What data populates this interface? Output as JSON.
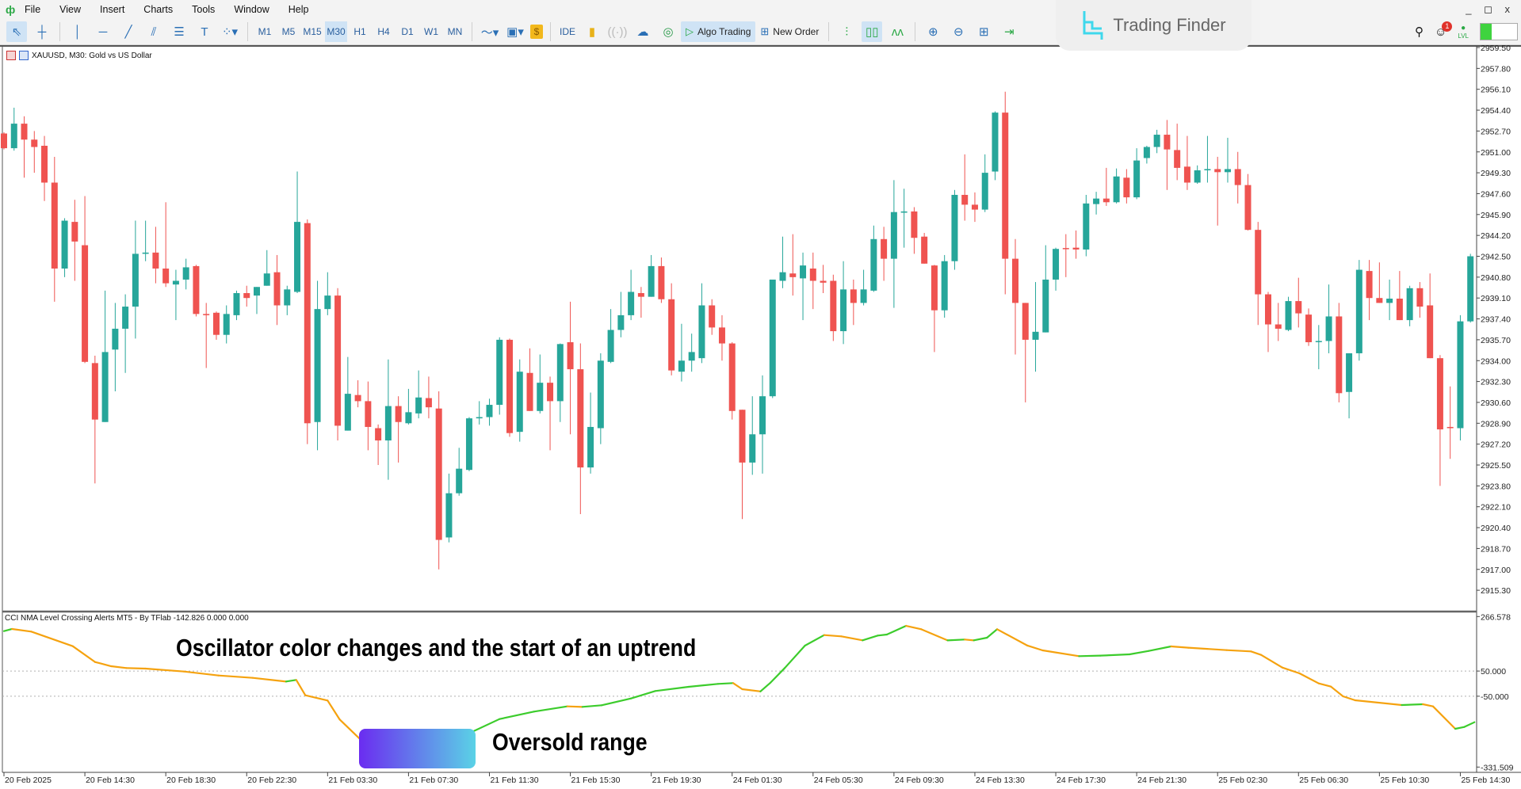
{
  "menu": {
    "items": [
      "File",
      "View",
      "Insert",
      "Charts",
      "Tools",
      "Window",
      "Help"
    ],
    "window_controls": "_ ◻ x"
  },
  "toolbar": {
    "tools": [
      "cursor-icon",
      "crosshair-icon",
      "vertical-line-icon",
      "horizontal-line-icon",
      "trendline-icon",
      "channel-icon",
      "fibonacci-icon",
      "text-icon",
      "shapes-icon"
    ],
    "timeframes": [
      "M1",
      "M5",
      "M15",
      "M30",
      "H1",
      "H4",
      "D1",
      "W1",
      "MN"
    ],
    "active_timeframe": "M30",
    "ide_label": "IDE",
    "algo_trading_label": "Algo Trading",
    "new_order_label": "New Order",
    "notification_count": "1",
    "lvl_label": "LVL"
  },
  "watermark": {
    "brand": "Trading Finder"
  },
  "chart": {
    "title": "XAUUSD, M30:  Gold vs US Dollar",
    "colors": {
      "bull": "#26a69a",
      "bear": "#ef5350"
    },
    "price_axis": [
      "2959.50",
      "2957.80",
      "2956.10",
      "2954.40",
      "2952.70",
      "2951.00",
      "2949.30",
      "2947.60",
      "2945.90",
      "2944.20",
      "2942.50",
      "2940.80",
      "2939.10",
      "2937.40",
      "2935.70",
      "2934.00",
      "2932.30",
      "2930.60",
      "2928.90",
      "2927.20",
      "2925.50",
      "2923.80",
      "2922.10",
      "2920.40",
      "2918.70",
      "2917.00",
      "2915.30"
    ],
    "time_axis": [
      "20 Feb 2025",
      "20 Feb 14:30",
      "20 Feb 18:30",
      "20 Feb 22:30",
      "21 Feb 03:30",
      "21 Feb 07:30",
      "21 Feb 11:30",
      "21 Feb 15:30",
      "21 Feb 19:30",
      "24 Feb 01:30",
      "24 Feb 05:30",
      "24 Feb 09:30",
      "24 Feb 13:30",
      "24 Feb 17:30",
      "24 Feb 21:30",
      "25 Feb 02:30",
      "25 Feb 06:30",
      "25 Feb 10:30",
      "25 Feb 14:30"
    ],
    "candles_ohlc": [
      [
        2952.5,
        2952.6,
        2951.2,
        2951.3
      ],
      [
        2951.3,
        2954.6,
        2951.1,
        2953.3
      ],
      [
        2953.3,
        2953.9,
        2948.9,
        2952.0
      ],
      [
        2952.0,
        2952.7,
        2949.3,
        2951.4
      ],
      [
        2951.5,
        2952.3,
        2947.0,
        2948.5
      ],
      [
        2948.5,
        2950.6,
        2938.8,
        2941.5
      ],
      [
        2941.5,
        2945.6,
        2940.8,
        2945.4
      ],
      [
        2945.3,
        2947.1,
        2940.5,
        2943.7
      ],
      [
        2943.4,
        2947.4,
        2933.8,
        2933.9
      ],
      [
        2933.8,
        2934.4,
        2924.0,
        2929.2
      ],
      [
        2929.0,
        2939.7,
        2929.0,
        2934.7
      ],
      [
        2934.9,
        2938.7,
        2931.5,
        2936.6
      ],
      [
        2936.6,
        2939.4,
        2933.0,
        2938.4
      ],
      [
        2938.4,
        2945.4,
        2935.8,
        2942.7
      ],
      [
        2942.7,
        2945.4,
        2942.1,
        2942.8
      ],
      [
        2942.8,
        2944.9,
        2940.3,
        2941.5
      ],
      [
        2941.5,
        2946.9,
        2940.0,
        2940.3
      ],
      [
        2940.2,
        2941.4,
        2937.3,
        2940.5
      ],
      [
        2940.6,
        2942.3,
        2939.8,
        2941.6
      ],
      [
        2941.7,
        2941.8,
        2937.6,
        2937.8
      ],
      [
        2937.8,
        2938.7,
        2933.4,
        2937.7
      ],
      [
        2937.9,
        2938.0,
        2935.7,
        2936.1
      ],
      [
        2936.1,
        2938.5,
        2935.4,
        2937.8
      ],
      [
        2937.7,
        2939.7,
        2937.3,
        2939.5
      ],
      [
        2939.5,
        2940.1,
        2938.4,
        2939.1
      ],
      [
        2939.3,
        2940.0,
        2937.8,
        2940.0
      ],
      [
        2940.1,
        2943.0,
        2940.1,
        2941.1
      ],
      [
        2941.2,
        2942.6,
        2936.9,
        2938.5
      ],
      [
        2938.5,
        2940.1,
        2937.7,
        2939.8
      ],
      [
        2939.6,
        2949.4,
        2939.5,
        2945.3
      ],
      [
        2945.2,
        2945.5,
        2927.2,
        2928.9
      ],
      [
        2929.0,
        2940.5,
        2926.7,
        2938.2
      ],
      [
        2938.2,
        2941.2,
        2937.7,
        2939.3
      ],
      [
        2939.3,
        2939.9,
        2927.5,
        2928.7
      ],
      [
        2928.3,
        2934.3,
        2928.3,
        2931.3
      ],
      [
        2931.2,
        2932.4,
        2930.2,
        2930.7
      ],
      [
        2930.7,
        2932.3,
        2926.7,
        2928.6
      ],
      [
        2928.5,
        2928.8,
        2925.5,
        2927.5
      ],
      [
        2927.5,
        2934.1,
        2924.3,
        2930.3
      ],
      [
        2930.3,
        2931.1,
        2925.7,
        2929.0
      ],
      [
        2928.9,
        2931.7,
        2928.8,
        2929.8
      ],
      [
        2929.7,
        2933.2,
        2929.3,
        2931.0
      ],
      [
        2930.95,
        2932.7,
        2929.3,
        2930.2
      ],
      [
        2930.1,
        2931.5,
        2917.0,
        2919.4
      ],
      [
        2919.6,
        2924.8,
        2919.2,
        2923.2
      ],
      [
        2923.2,
        2926.9,
        2923.0,
        2925.2
      ],
      [
        2925.1,
        2929.4,
        2925.0,
        2929.3
      ],
      [
        2929.3,
        2930.7,
        2928.8,
        2929.4
      ],
      [
        2929.4,
        2930.9,
        2928.7,
        2930.4
      ],
      [
        2930.4,
        2935.9,
        2929.6,
        2935.7
      ],
      [
        2935.7,
        2935.8,
        2927.8,
        2928.1
      ],
      [
        2928.2,
        2934.1,
        2927.4,
        2933.1
      ],
      [
        2933.0,
        2935.0,
        2929.9,
        2929.9
      ],
      [
        2929.9,
        2934.5,
        2929.7,
        2932.2
      ],
      [
        2932.2,
        2932.7,
        2926.7,
        2930.7
      ],
      [
        2930.7,
        2935.4,
        2929.0,
        2935.35
      ],
      [
        2935.5,
        2938.8,
        2928.0,
        2933.3
      ],
      [
        2933.3,
        2935.4,
        2921.5,
        2925.3
      ],
      [
        2925.3,
        2931.4,
        2924.8,
        2928.6
      ],
      [
        2928.5,
        2934.6,
        2927.2,
        2934.0
      ],
      [
        2933.9,
        2938.2,
        2933.8,
        2936.5
      ],
      [
        2936.5,
        2939.6,
        2935.9,
        2937.7
      ],
      [
        2937.7,
        2941.4,
        2937.3,
        2939.6
      ],
      [
        2939.5,
        2940.0,
        2937.5,
        2939.2
      ],
      [
        2939.2,
        2942.6,
        2939.2,
        2941.7
      ],
      [
        2941.7,
        2942.4,
        2938.7,
        2939.0
      ],
      [
        2939.0,
        2940.3,
        2932.8,
        2933.2
      ],
      [
        2933.1,
        2937.0,
        2932.3,
        2934.0
      ],
      [
        2934.0,
        2936.2,
        2933.1,
        2934.7
      ],
      [
        2934.2,
        2940.3,
        2933.8,
        2938.5
      ],
      [
        2938.5,
        2939.0,
        2936.1,
        2936.7
      ],
      [
        2936.7,
        2937.7,
        2934.0,
        2935.4
      ],
      [
        2935.4,
        2935.5,
        2929.2,
        2929.9
      ],
      [
        2930.0,
        2930.0,
        2921.1,
        2925.7
      ],
      [
        2925.7,
        2931.1,
        2924.7,
        2928.0
      ],
      [
        2928.0,
        2932.8,
        2924.8,
        2931.1
      ],
      [
        2931.1,
        2940.6,
        2930.95,
        2940.6
      ],
      [
        2940.5,
        2944.1,
        2939.9,
        2941.2
      ],
      [
        2941.1,
        2944.3,
        2939.3,
        2940.8
      ],
      [
        2940.7,
        2942.8,
        2937.3,
        2941.75
      ],
      [
        2941.5,
        2942.8,
        2938.2,
        2940.5
      ],
      [
        2940.5,
        2941.8,
        2939.5,
        2940.35
      ],
      [
        2940.5,
        2941.0,
        2935.6,
        2936.4
      ],
      [
        2936.4,
        2942.1,
        2935.35,
        2939.8
      ],
      [
        2939.8,
        2940.6,
        2936.9,
        2938.7
      ],
      [
        2938.7,
        2941.4,
        2938.5,
        2939.8
      ],
      [
        2939.7,
        2945.0,
        2939.6,
        2943.9
      ],
      [
        2943.9,
        2944.9,
        2940.5,
        2942.3
      ],
      [
        2942.3,
        2948.7,
        2938.3,
        2946.1
      ],
      [
        2946.05,
        2948.0,
        2943.2,
        2946.15
      ],
      [
        2946.15,
        2946.5,
        2942.7,
        2944.0
      ],
      [
        2944.1,
        2944.4,
        2941.9,
        2941.9
      ],
      [
        2941.75,
        2941.8,
        2934.7,
        2938.1
      ],
      [
        2938.1,
        2942.6,
        2937.5,
        2942.1
      ],
      [
        2942.1,
        2947.9,
        2941.4,
        2947.5
      ],
      [
        2947.5,
        2950.8,
        2945.4,
        2946.7
      ],
      [
        2946.7,
        2947.7,
        2945.3,
        2946.3
      ],
      [
        2946.3,
        2950.8,
        2946.1,
        2949.3
      ],
      [
        2949.4,
        2954.3,
        2948.7,
        2954.2
      ],
      [
        2954.2,
        2955.9,
        2939.4,
        2942.3
      ],
      [
        2942.3,
        2943.9,
        2934.5,
        2938.7
      ],
      [
        2938.7,
        2938.7,
        2930.6,
        2935.7
      ],
      [
        2935.7,
        2940.4,
        2933.1,
        2936.35
      ],
      [
        2936.3,
        2943.4,
        2936.3,
        2940.6
      ],
      [
        2940.6,
        2943.2,
        2939.7,
        2943.1
      ],
      [
        2943.17,
        2944.3,
        2940.8,
        2943.1
      ],
      [
        2943.2,
        2944.6,
        2942.3,
        2943.05
      ],
      [
        2943.05,
        2947.5,
        2942.5,
        2946.8
      ],
      [
        2946.75,
        2947.75,
        2945.9,
        2947.2
      ],
      [
        2947.2,
        2949.7,
        2946.6,
        2946.9
      ],
      [
        2946.9,
        2949.65,
        2946.8,
        2949.0
      ],
      [
        2948.9,
        2949.6,
        2946.8,
        2947.3
      ],
      [
        2947.3,
        2951.3,
        2947.15,
        2950.3
      ],
      [
        2950.5,
        2951.5,
        2950.05,
        2951.4
      ],
      [
        2951.4,
        2952.8,
        2950.9,
        2952.4
      ],
      [
        2952.4,
        2953.6,
        2947.9,
        2951.2
      ],
      [
        2951.15,
        2953.3,
        2948.7,
        2949.7
      ],
      [
        2949.8,
        2952.3,
        2947.9,
        2948.5
      ],
      [
        2948.5,
        2949.9,
        2948.4,
        2949.5
      ],
      [
        2949.5,
        2952.3,
        2948.5,
        2949.6
      ],
      [
        2949.6,
        2950.6,
        2945.0,
        2949.35
      ],
      [
        2949.35,
        2952.15,
        2948.5,
        2949.6
      ],
      [
        2949.6,
        2951.0,
        2946.8,
        2948.3
      ],
      [
        2948.3,
        2949.2,
        2944.6,
        2944.65
      ],
      [
        2944.65,
        2945.3,
        2936.9,
        2939.4
      ],
      [
        2939.4,
        2939.6,
        2934.7,
        2936.95
      ],
      [
        2936.95,
        2938.7,
        2935.6,
        2936.6
      ],
      [
        2936.5,
        2939.2,
        2936.4,
        2938.85
      ],
      [
        2938.85,
        2940.75,
        2936.7,
        2937.85
      ],
      [
        2937.75,
        2938.25,
        2935.2,
        2935.5
      ],
      [
        2935.55,
        2936.9,
        2933.3,
        2935.6
      ],
      [
        2935.6,
        2940.2,
        2934.6,
        2937.6
      ],
      [
        2937.6,
        2938.7,
        2930.6,
        2931.35
      ],
      [
        2931.45,
        2934.6,
        2929.3,
        2934.6
      ],
      [
        2934.6,
        2942.2,
        2934.0,
        2941.4
      ],
      [
        2941.3,
        2942.2,
        2937.3,
        2939.1
      ],
      [
        2939.1,
        2942.0,
        2938.7,
        2938.7
      ],
      [
        2938.7,
        2940.6,
        2937.3,
        2939.05
      ],
      [
        2939.05,
        2941.3,
        2937.3,
        2937.3
      ],
      [
        2937.3,
        2940.1,
        2936.8,
        2939.9
      ],
      [
        2939.9,
        2940.4,
        2937.5,
        2938.4
      ],
      [
        2938.5,
        2941.1,
        2934.2,
        2934.2
      ],
      [
        2934.2,
        2934.45,
        2923.8,
        2928.4
      ],
      [
        2928.6,
        2931.9,
        2926.0,
        2928.5
      ],
      [
        2928.5,
        2937.7,
        2927.5,
        2937.2
      ],
      [
        2937.2,
        2942.7,
        2937.1,
        2942.5
      ]
    ]
  },
  "indicator": {
    "label": "CCI NMA Level Crossing Alerts MT5 - By TFlab -142.826 0.000 0.000",
    "axis_labels": [
      "266.578",
      "50.000",
      "-50.000",
      "-331.509"
    ],
    "range": [
      -331.509,
      266.578
    ],
    "levels": [
      50,
      -50
    ],
    "colors": {
      "up": "#3ccc2c",
      "down": "#f5a20f",
      "level": "#b0b0b0"
    },
    "points_bar_value": [
      [
        1,
        208.8
      ],
      [
        1.8,
        217.2
      ],
      [
        3.7,
        206.7
      ],
      [
        7.8,
        148.9
      ],
      [
        10,
        86
      ],
      [
        11.6,
        69.2
      ],
      [
        13.1,
        61.9
      ],
      [
        15,
        59.8
      ],
      [
        18.8,
        48.2
      ],
      [
        22.2,
        32.5
      ],
      [
        25.6,
        23
      ],
      [
        28.9,
        8.3
      ],
      [
        29.9,
        14.6
      ],
      [
        30.8,
        -46.2
      ],
      [
        33,
        -67.2
      ],
      [
        34.2,
        -142.8
      ],
      [
        36.1,
        -216.2
      ],
      [
        38,
        -294.9
      ],
      [
        39.9,
        -268.7
      ],
      [
        42.8,
        -202.6
      ],
      [
        44,
        -237.2
      ],
      [
        45,
        -233
      ],
      [
        47.1,
        -195.2
      ],
      [
        50,
        -140.7
      ],
      [
        53.4,
        -111.3
      ],
      [
        56.7,
        -90.3
      ],
      [
        58.2,
        -92.4
      ],
      [
        60.1,
        -86.1
      ],
      [
        63,
        -58.8
      ],
      [
        65.4,
        -29.4
      ],
      [
        68.7,
        -12.6
      ],
      [
        71.6,
        -1.1
      ],
      [
        73.1,
        2.1
      ],
      [
        74,
        -22.1
      ],
      [
        75.8,
        -31
      ],
      [
        76.8,
        4.2
      ],
      [
        78.2,
        61.9
      ],
      [
        80.2,
        151.1
      ],
      [
        82.1,
        193
      ],
      [
        83.8,
        187.8
      ],
      [
        85.9,
        172
      ],
      [
        87.4,
        190.9
      ],
      [
        88.3,
        195.1
      ],
      [
        90.2,
        229.7
      ],
      [
        91.7,
        216.1
      ],
      [
        94.3,
        172
      ],
      [
        96,
        175.2
      ],
      [
        96.9,
        172
      ],
      [
        98.2,
        182.5
      ],
      [
        99.2,
        216.1
      ],
      [
        102.2,
        151.1
      ],
      [
        103.7,
        132.2
      ],
      [
        107.3,
        109.1
      ],
      [
        109.4,
        111.2
      ],
      [
        112.3,
        116.4
      ],
      [
        114.2,
        130.1
      ],
      [
        116.4,
        147.9
      ],
      [
        118.1,
        142.7
      ],
      [
        121.9,
        133.2
      ],
      [
        124.3,
        128
      ],
      [
        125.3,
        114.3
      ],
      [
        127.4,
        63.9
      ],
      [
        129.1,
        40.9
      ],
      [
        131,
        1
      ],
      [
        132.2,
        -11.6
      ],
      [
        133.4,
        -50.4
      ],
      [
        134.6,
        -66.2
      ],
      [
        139.2,
        -85
      ],
      [
        141.3,
        -81.9
      ],
      [
        142.3,
        -90.3
      ],
      [
        144.5,
        -179.5
      ],
      [
        145.4,
        -172.1
      ],
      [
        146.4,
        -153.3
      ]
    ]
  },
  "annotations": {
    "uptrend_note": "Oscillator color changes and the start of an uptrend",
    "oversold_note": "Oversold range"
  }
}
